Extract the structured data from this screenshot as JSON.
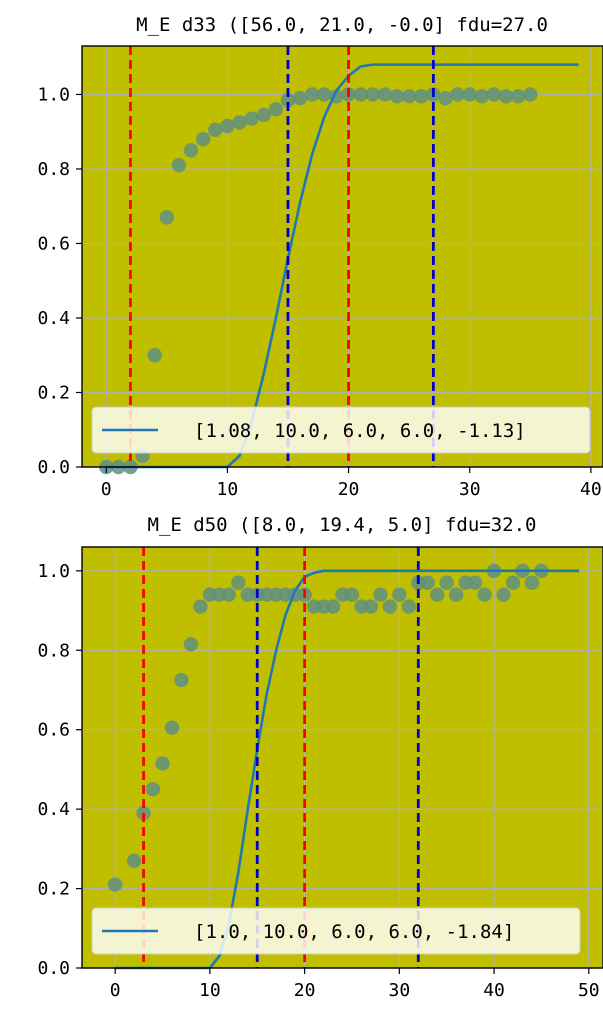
{
  "chart_data": [
    {
      "type": "scatter",
      "title": "M_E d33 ([56.0, 21.0, -0.0] fdu=27.0",
      "xlabel": "",
      "ylabel": "",
      "xlim": [
        -2,
        41
      ],
      "ylim": [
        0,
        1.13
      ],
      "xticks": [
        0,
        10,
        20,
        30,
        40
      ],
      "xtick_labels": [
        "0",
        "10",
        "20",
        "30",
        "40"
      ],
      "yticks": [
        0,
        0.2,
        0.4,
        0.6,
        0.8,
        1.0
      ],
      "ytick_labels": [
        "0.0",
        "0.2",
        "0.4",
        "0.6",
        "0.8",
        "1.0"
      ],
      "grid": true,
      "background": "#bfbf00",
      "legend_placement": "lower-right",
      "scatter": {
        "color": "#5f8f80",
        "x": [
          0,
          1,
          2,
          3,
          4,
          5,
          6,
          7,
          8,
          9,
          10,
          11,
          12,
          13,
          14,
          15,
          16,
          17,
          18,
          19,
          20,
          21,
          22,
          23,
          24,
          25,
          26,
          27,
          28,
          29,
          30,
          31,
          32,
          33,
          34,
          35
        ],
        "y": [
          0.0,
          0.0,
          0.0,
          0.03,
          0.3,
          0.67,
          0.81,
          0.85,
          0.88,
          0.905,
          0.915,
          0.925,
          0.935,
          0.945,
          0.96,
          0.985,
          0.99,
          1.0,
          1.0,
          0.995,
          1.0,
          1.0,
          1.0,
          1.0,
          0.995,
          0.995,
          0.995,
          1.0,
          0.99,
          1.0,
          1.0,
          0.995,
          1.0,
          0.995,
          0.995,
          1.0
        ]
      },
      "line": {
        "name": "[1.08, 10.0, 6.0, 6.0, -1.13]",
        "color": "#1f77b4",
        "x": [
          0,
          10,
          11,
          12,
          13,
          14,
          15,
          16,
          17,
          18,
          19,
          20,
          21,
          22,
          23,
          24,
          25,
          26,
          27,
          28,
          29,
          30,
          31,
          32,
          33,
          34,
          35,
          36,
          37,
          38,
          39
        ],
        "y": [
          0.0,
          0.0,
          0.03,
          0.12,
          0.25,
          0.4,
          0.56,
          0.71,
          0.84,
          0.94,
          1.01,
          1.05,
          1.075,
          1.08,
          1.08,
          1.08,
          1.08,
          1.08,
          1.08,
          1.08,
          1.08,
          1.08,
          1.08,
          1.08,
          1.08,
          1.08,
          1.08,
          1.08,
          1.08,
          1.08,
          1.08
        ]
      },
      "vlines": [
        {
          "x": 2,
          "color": "#ff0000"
        },
        {
          "x": 20,
          "color": "#ff0000"
        },
        {
          "x": 15,
          "color": "#0000cc"
        },
        {
          "x": 27,
          "color": "#0000cc"
        }
      ]
    },
    {
      "type": "scatter",
      "title": "M_E d50 ([8.0, 19.4, 5.0] fdu=32.0",
      "xlabel": "",
      "ylabel": "",
      "xlim": [
        -3.5,
        51.5
      ],
      "ylim": [
        0,
        1.06
      ],
      "xticks": [
        0,
        10,
        20,
        30,
        40,
        50
      ],
      "xtick_labels": [
        "0",
        "10",
        "20",
        "30",
        "40",
        "50"
      ],
      "yticks": [
        0,
        0.2,
        0.4,
        0.6,
        0.8,
        1.0
      ],
      "ytick_labels": [
        "0.0",
        "0.2",
        "0.4",
        "0.6",
        "0.8",
        "1.0"
      ],
      "grid": true,
      "background": "#bfbf00",
      "legend_placement": "lower-right",
      "scatter": {
        "color": "#5f8f80",
        "x": [
          0,
          2,
          3,
          4,
          5,
          6,
          7,
          8,
          9,
          10,
          11,
          12,
          13,
          14,
          15,
          16,
          17,
          18,
          19,
          20,
          21,
          22,
          23,
          24,
          25,
          26,
          27,
          28,
          29,
          30,
          31,
          32,
          33,
          34,
          35,
          36,
          37,
          38,
          39,
          40,
          41,
          42,
          43,
          44,
          45
        ],
        "y": [
          0.21,
          0.27,
          0.39,
          0.45,
          0.515,
          0.605,
          0.725,
          0.815,
          0.91,
          0.94,
          0.94,
          0.94,
          0.97,
          0.94,
          0.94,
          0.94,
          0.94,
          0.94,
          0.94,
          0.94,
          0.91,
          0.91,
          0.91,
          0.94,
          0.94,
          0.91,
          0.91,
          0.94,
          0.91,
          0.94,
          0.91,
          0.97,
          0.97,
          0.94,
          0.97,
          0.94,
          0.97,
          0.97,
          0.94,
          1.0,
          0.94,
          0.97,
          1.0,
          0.97,
          1.0
        ]
      },
      "line": {
        "name": "[1.0, 10.0, 6.0, 6.0, -1.84]",
        "color": "#1f77b4",
        "x": [
          0,
          10,
          11,
          12,
          13,
          14,
          15,
          16,
          17,
          18,
          19,
          20,
          21,
          22,
          23,
          24,
          25,
          30,
          35,
          40,
          45,
          49
        ],
        "y": [
          0.0,
          0.0,
          0.03,
          0.11,
          0.24,
          0.4,
          0.55,
          0.69,
          0.8,
          0.89,
          0.95,
          0.985,
          0.995,
          1.0,
          1.0,
          1.0,
          1.0,
          1.0,
          1.0,
          1.0,
          1.0,
          1.0
        ]
      },
      "vlines": [
        {
          "x": 3,
          "color": "#ff0000"
        },
        {
          "x": 20,
          "color": "#ff0000"
        },
        {
          "x": 15,
          "color": "#0000cc"
        },
        {
          "x": 32,
          "color": "#0000cc"
        }
      ]
    }
  ]
}
